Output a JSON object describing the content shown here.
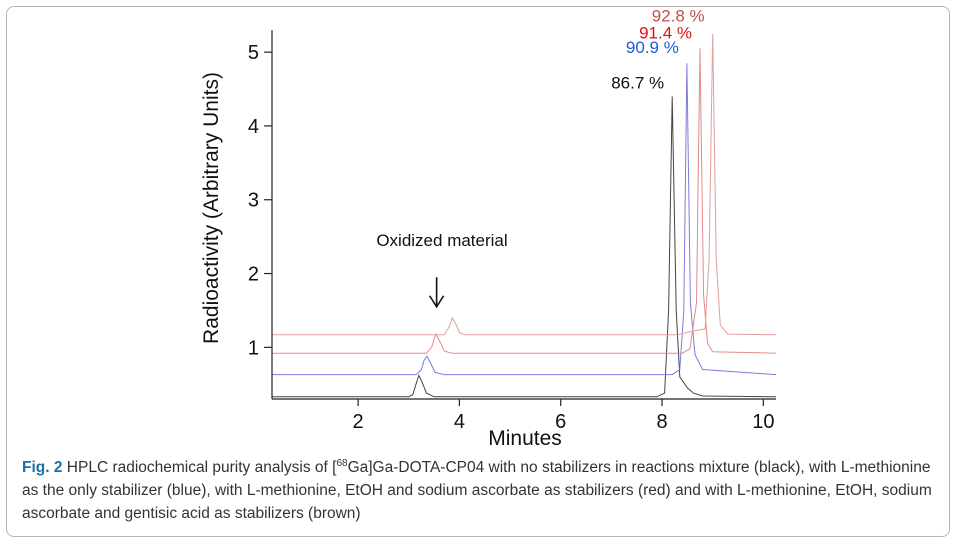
{
  "chart_data": {
    "type": "line",
    "xlabel": "Minutes",
    "ylabel": "Radioactivity (Arbitrary Units)",
    "xlim": [
      0.3,
      10.25
    ],
    "ylim": [
      0.3,
      5.3
    ],
    "xticks": [
      2,
      4,
      6,
      8,
      10
    ],
    "yticks": [
      1,
      2,
      3,
      4,
      5
    ],
    "grid": false,
    "series": [
      {
        "color": "#444444",
        "values": [
          [
            0.3,
            0.33
          ],
          [
            3.0,
            0.33
          ],
          [
            3.08,
            0.36
          ],
          [
            3.15,
            0.52
          ],
          [
            3.2,
            0.62
          ],
          [
            3.25,
            0.55
          ],
          [
            3.35,
            0.38
          ],
          [
            3.5,
            0.33
          ],
          [
            7.9,
            0.33
          ],
          [
            8.05,
            0.38
          ],
          [
            8.13,
            1.5
          ],
          [
            8.2,
            4.4
          ],
          [
            8.28,
            1.5
          ],
          [
            8.35,
            0.6
          ],
          [
            8.5,
            0.45
          ],
          [
            8.62,
            0.38
          ],
          [
            8.8,
            0.34
          ],
          [
            10.25,
            0.33
          ]
        ],
        "peak_label": "86.7 %",
        "label_color": "#111111"
      },
      {
        "color": "#7c7cdd",
        "values": [
          [
            0.3,
            0.63
          ],
          [
            3.15,
            0.63
          ],
          [
            3.25,
            0.7
          ],
          [
            3.3,
            0.82
          ],
          [
            3.36,
            0.88
          ],
          [
            3.42,
            0.8
          ],
          [
            3.52,
            0.66
          ],
          [
            3.7,
            0.63
          ],
          [
            8.2,
            0.63
          ],
          [
            8.35,
            0.7
          ],
          [
            8.43,
            1.5
          ],
          [
            8.49,
            4.85
          ],
          [
            8.56,
            1.6
          ],
          [
            8.65,
            0.9
          ],
          [
            8.8,
            0.7
          ],
          [
            10.25,
            0.63
          ]
        ],
        "peak_label": "90.9 %",
        "label_color": "#1c5ed6"
      },
      {
        "color": "#e88888",
        "values": [
          [
            0.3,
            0.92
          ],
          [
            3.35,
            0.92
          ],
          [
            3.45,
            1.0
          ],
          [
            3.53,
            1.18
          ],
          [
            3.6,
            1.1
          ],
          [
            3.7,
            0.95
          ],
          [
            3.85,
            0.92
          ],
          [
            8.4,
            0.92
          ],
          [
            8.55,
            0.98
          ],
          [
            8.68,
            1.6
          ],
          [
            8.75,
            5.05
          ],
          [
            8.82,
            1.7
          ],
          [
            8.9,
            1.05
          ],
          [
            9.0,
            0.94
          ],
          [
            10.25,
            0.92
          ]
        ],
        "peak_label": "91.4 %",
        "label_color": "#e01010"
      },
      {
        "color": "#e0a0a0",
        "values": [
          [
            0.3,
            1.17
          ],
          [
            3.7,
            1.17
          ],
          [
            3.8,
            1.28
          ],
          [
            3.86,
            1.4
          ],
          [
            3.92,
            1.33
          ],
          [
            4.0,
            1.2
          ],
          [
            4.1,
            1.17
          ],
          [
            8.3,
            1.17
          ],
          [
            8.6,
            1.22
          ],
          [
            8.85,
            1.25
          ],
          [
            8.93,
            2.2
          ],
          [
            9.0,
            5.25
          ],
          [
            9.07,
            2.2
          ],
          [
            9.15,
            1.3
          ],
          [
            9.3,
            1.18
          ],
          [
            10.25,
            1.17
          ]
        ],
        "peak_label": "92.8 %",
        "label_color": "#c0504d"
      }
    ],
    "annotation": {
      "text": "Oxidized material",
      "arrow_x": 3.55,
      "arrow_from_y": 1.95,
      "arrow_to_y": 1.55
    }
  },
  "caption": {
    "fig_label": "Fig. 2",
    "text_before_sup": " HPLC radiochemical purity analysis of [",
    "sup": "68",
    "text_after_sup": "Ga]Ga-DOTA-CP04 with no stabilizers in reactions mixture (black), with L-methionine as the only stabilizer (blue), with L-methionine, EtOH and sodium ascorbate as stabilizers (red) and with L-methionine, EtOH, sodium ascorbate and gentisic acid as stabilizers (brown)"
  }
}
